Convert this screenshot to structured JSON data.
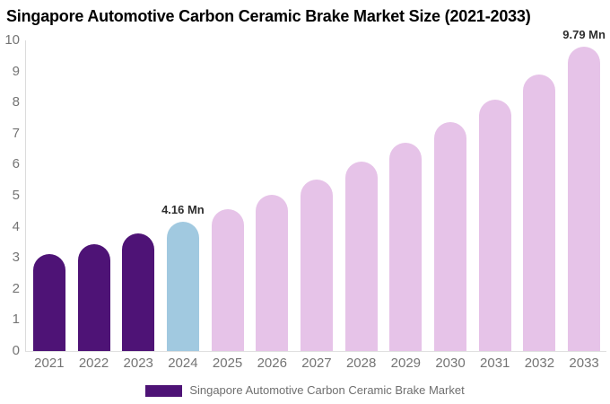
{
  "chart_data": {
    "type": "bar",
    "title": "Singapore Automotive Carbon Ceramic Brake Market Size (2021-2033)",
    "categories": [
      "2021",
      "2022",
      "2023",
      "2024",
      "2025",
      "2026",
      "2027",
      "2028",
      "2029",
      "2030",
      "2031",
      "2032",
      "2033"
    ],
    "series": [
      {
        "name": "Singapore Automotive Carbon Ceramic Brake Market",
        "values": [
          3.13,
          3.44,
          3.78,
          4.16,
          4.57,
          5.03,
          5.53,
          6.09,
          6.7,
          7.37,
          8.1,
          8.9,
          9.79
        ]
      }
    ],
    "xlabel": "",
    "ylabel": "",
    "ylim": [
      0,
      10
    ],
    "yticks": [
      0,
      1,
      2,
      3,
      4,
      5,
      6,
      7,
      8,
      9,
      10
    ],
    "grid": false,
    "legend_position": "bottom",
    "bar_colors": [
      "#4e1376",
      "#4e1376",
      "#4e1376",
      "#a1c9e0",
      "#e6c3e8",
      "#e6c3e8",
      "#e6c3e8",
      "#e6c3e8",
      "#e6c3e8",
      "#e6c3e8",
      "#e6c3e8",
      "#e6c3e8",
      "#e6c3e8"
    ],
    "annotations": [
      {
        "category": "2024",
        "text": "4.16 Mn"
      },
      {
        "category": "2033",
        "text": "9.79 Mn"
      }
    ]
  },
  "colors": {
    "historical_bar": "#4e1376",
    "current_year_bar": "#a1c9e0",
    "forecast_bar": "#e6c3e8",
    "axis_line": "#dcdcdc",
    "axis_label": "#747474",
    "annotation_text": "#2e2e2e",
    "legend_text": "#6f6f6f"
  },
  "legend": {
    "label": "Singapore Automotive Carbon Ceramic Brake Market",
    "swatch_color": "#4e1376"
  }
}
